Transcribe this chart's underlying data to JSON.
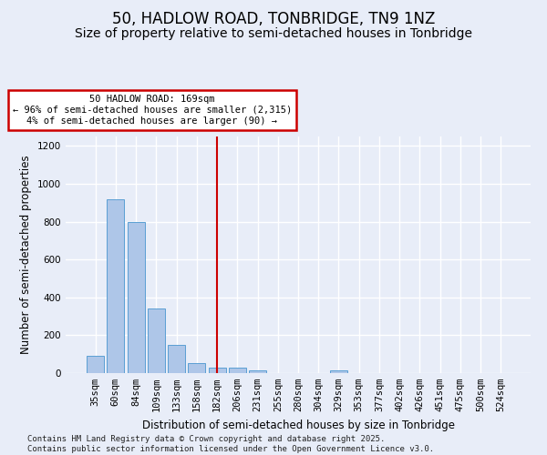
{
  "title1": "50, HADLOW ROAD, TONBRIDGE, TN9 1NZ",
  "title2": "Size of property relative to semi-detached houses in Tonbridge",
  "xlabel": "Distribution of semi-detached houses by size in Tonbridge",
  "ylabel": "Number of semi-detached properties",
  "categories": [
    "35sqm",
    "60sqm",
    "84sqm",
    "109sqm",
    "133sqm",
    "158sqm",
    "182sqm",
    "206sqm",
    "231sqm",
    "255sqm",
    "280sqm",
    "304sqm",
    "329sqm",
    "353sqm",
    "377sqm",
    "402sqm",
    "426sqm",
    "451sqm",
    "475sqm",
    "500sqm",
    "524sqm"
  ],
  "values": [
    90,
    920,
    800,
    340,
    150,
    55,
    28,
    27,
    13,
    0,
    0,
    0,
    15,
    0,
    0,
    0,
    0,
    0,
    0,
    0,
    0
  ],
  "bar_color": "#aec6e8",
  "bar_edge_color": "#5a9fd4",
  "highlight_x": "182sqm",
  "highlight_line_color": "#cc0000",
  "annotation_text": "50 HADLOW ROAD: 169sqm\n← 96% of semi-detached houses are smaller (2,315)\n4% of semi-detached houses are larger (90) →",
  "annotation_box_color": "#ffffff",
  "annotation_box_edge": "#cc0000",
  "ylim": [
    0,
    1250
  ],
  "yticks": [
    0,
    200,
    400,
    600,
    800,
    1000,
    1200
  ],
  "footer": "Contains HM Land Registry data © Crown copyright and database right 2025.\nContains public sector information licensed under the Open Government Licence v3.0.",
  "bg_color": "#e8edf8",
  "grid_color": "#ffffff",
  "title1_fontsize": 12,
  "title2_fontsize": 10,
  "axis_label_fontsize": 8.5,
  "tick_fontsize": 7.5,
  "footer_fontsize": 6.5
}
